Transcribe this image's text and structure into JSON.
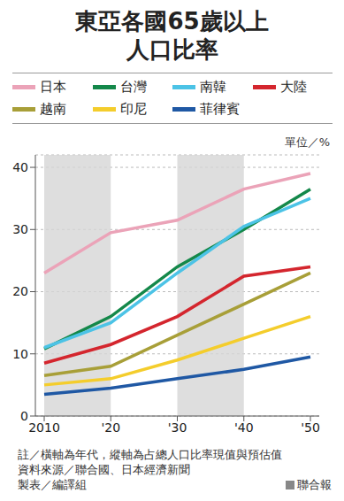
{
  "chart_data": {
    "type": "line",
    "title": "東亞各國65歲以上人口比率",
    "unit_label": "單位／%",
    "categories": [
      "2010",
      "'20",
      "'30",
      "'40",
      "'50"
    ],
    "series": [
      {
        "name": "日本",
        "color": "#eba3b8",
        "values": [
          23,
          29.5,
          31.5,
          36.5,
          39
        ]
      },
      {
        "name": "台灣",
        "color": "#14884a",
        "values": [
          10.8,
          16,
          24,
          30,
          36.5
        ]
      },
      {
        "name": "南韓",
        "color": "#4cc3e6",
        "values": [
          11,
          15,
          23,
          30.5,
          35
        ]
      },
      {
        "name": "大陸",
        "color": "#d4262e",
        "values": [
          8.5,
          11.5,
          16,
          22.5,
          24
        ]
      },
      {
        "name": "越南",
        "color": "#a89f38",
        "values": [
          6.5,
          8,
          13,
          18,
          23
        ]
      },
      {
        "name": "印尼",
        "color": "#f4cd2c",
        "values": [
          5,
          6,
          9,
          12.5,
          16
        ]
      },
      {
        "name": "菲律賓",
        "color": "#1f58a4",
        "values": [
          3.5,
          4.5,
          6,
          7.5,
          9.5
        ]
      }
    ],
    "ylim": [
      0,
      42
    ],
    "yticks": [
      0,
      10,
      20,
      30,
      40
    ],
    "grid": true,
    "legend": "top",
    "notes": [
      "註／橫軸為年代，縱軸為占總人口比率現值與預估值",
      "資料來源／聯合國、日本經濟新聞",
      "製表／編譯組"
    ],
    "publisher": "聯合報"
  }
}
